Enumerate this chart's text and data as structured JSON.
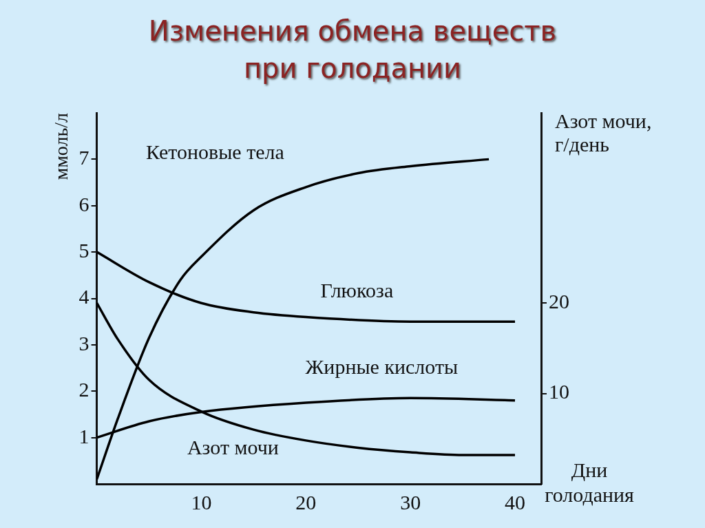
{
  "chart_data": {
    "type": "line",
    "title": "Изменения обмена веществ при голодании",
    "xlabel": "Дни голодания",
    "ylabel": "ммоль/л",
    "y2label": "Азот мочи, г/день",
    "xlim": [
      0,
      42.5
    ],
    "xticks": [
      10,
      20,
      30,
      40
    ],
    "ylim": [
      0,
      8
    ],
    "yticks": [
      1,
      2,
      3,
      4,
      5,
      6,
      7
    ],
    "y2lim": [
      0,
      41
    ],
    "y2ticks": [
      10,
      20
    ],
    "grid": false,
    "marker": "none",
    "line_style": "solid",
    "series": [
      {
        "name": "Кетоновые тела",
        "color": "#000000",
        "x": [
          0,
          2,
          5,
          8,
          10,
          15,
          20,
          25,
          30,
          37.5
        ],
        "values": [
          0.1,
          1.4,
          3.15,
          4.4,
          4.9,
          5.9,
          6.4,
          6.7,
          6.85,
          7.0
        ]
      },
      {
        "name": "Глюкоза",
        "color": "#000000",
        "x": [
          0,
          5,
          10,
          15,
          20,
          30,
          40
        ],
        "values": [
          5.0,
          4.35,
          3.9,
          3.7,
          3.6,
          3.5,
          3.5
        ]
      },
      {
        "name": "Жирные кислоты",
        "color": "#000000",
        "x": [
          0,
          5,
          10,
          20,
          30,
          40
        ],
        "values": [
          1.0,
          1.35,
          1.55,
          1.75,
          1.85,
          1.8
        ]
      },
      {
        "name": "Азот мочи",
        "color": "#000000",
        "axis": "y2",
        "x": [
          0,
          2,
          5,
          10,
          15,
          20,
          25,
          30,
          35,
          40
        ],
        "values": [
          20,
          16,
          11.5,
          8,
          6,
          4.8,
          4,
          3.5,
          3.2,
          3.2
        ]
      }
    ]
  }
}
